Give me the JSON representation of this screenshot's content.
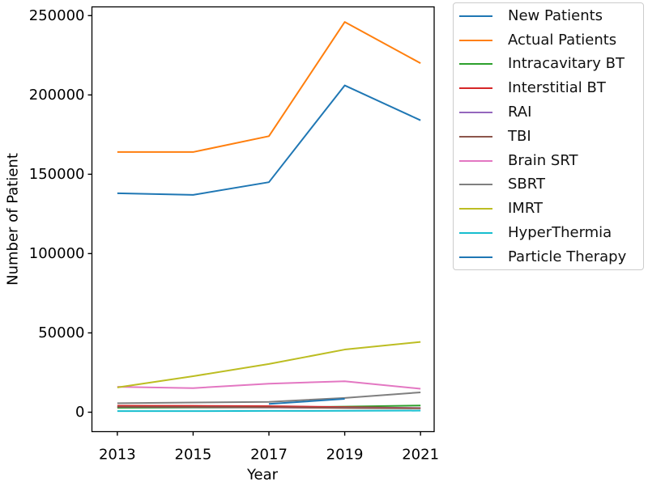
{
  "figure": {
    "background": "#ffffff",
    "spine_color": "#000000"
  },
  "chart_data": {
    "type": "line",
    "title": "",
    "xlabel": "Year",
    "ylabel": "Number of Patient",
    "x": [
      2013,
      2015,
      2017,
      2019,
      2021
    ],
    "x_tick_labels": [
      "2013",
      "2015",
      "2017",
      "2019",
      "2021"
    ],
    "y_ticks": [
      0,
      50000,
      100000,
      150000,
      200000,
      250000
    ],
    "y_tick_labels": [
      "0",
      "50000",
      "100000",
      "150000",
      "200000",
      "250000"
    ],
    "xlim": [
      2012.33,
      2021.36
    ],
    "ylim": [
      -12240,
      255510
    ],
    "grid": false,
    "legend_position": "outside-right",
    "series": [
      {
        "name": "New Patients",
        "color": "#1f77b4",
        "values": [
          138000,
          137000,
          145000,
          206000,
          184000
        ]
      },
      {
        "name": "Actual Patients",
        "color": "#ff7f0e",
        "values": [
          164000,
          164000,
          174000,
          246000,
          220000
        ]
      },
      {
        "name": "Intracavitary BT",
        "color": "#2ca02c",
        "values": [
          2800,
          2900,
          3000,
          3500,
          4200
        ]
      },
      {
        "name": "Interstitial BT",
        "color": "#d62728",
        "values": [
          4100,
          4000,
          3800,
          3200,
          2600
        ]
      },
      {
        "name": "RAI",
        "color": "#9467bd",
        "values": [
          3300,
          3200,
          3000,
          2800,
          2600
        ]
      },
      {
        "name": "TBI",
        "color": "#8c564b",
        "values": [
          3400,
          3300,
          3100,
          2700,
          2400
        ]
      },
      {
        "name": "Brain SRT",
        "color": "#e377c2",
        "values": [
          16000,
          15200,
          18000,
          19500,
          14800
        ]
      },
      {
        "name": "SBRT",
        "color": "#7f7f7f",
        "values": [
          5700,
          6100,
          6500,
          9000,
          12500
        ]
      },
      {
        "name": "IMRT",
        "color": "#bcbd22",
        "values": [
          15600,
          22700,
          30400,
          39500,
          44300
        ]
      },
      {
        "name": "HyperThermia",
        "color": "#17becf",
        "values": [
          700,
          700,
          800,
          900,
          1000
        ]
      },
      {
        "name": "Particle Therapy",
        "color": "#1f77b4",
        "values": [
          null,
          null,
          5200,
          8400,
          null
        ]
      }
    ]
  }
}
